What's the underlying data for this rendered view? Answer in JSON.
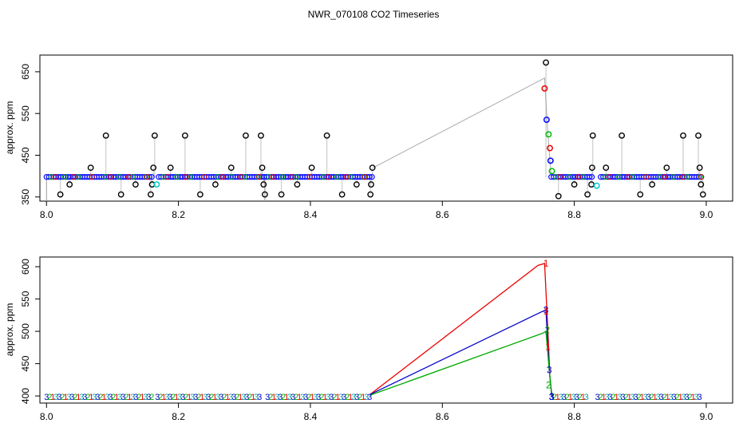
{
  "chart_data": [
    {
      "type": "scatter",
      "title": "NWR_070108  CO2 Timeseries",
      "xlabel": "",
      "ylabel": "approx. ppm",
      "xlim": [
        7.99,
        9.04
      ],
      "ylim": [
        340,
        690
      ],
      "xticks": [
        "8.0",
        "8.2",
        "8.4",
        "8.6",
        "8.8",
        "9.0"
      ],
      "yticks": [
        "350",
        "450",
        "550",
        "650"
      ],
      "baseline_segments": [
        [
          8.0,
          8.16
        ],
        [
          8.17,
          8.33
        ],
        [
          8.33,
          8.495
        ],
        [
          8.765,
          8.83
        ],
        [
          8.84,
          8.995
        ]
      ],
      "baseline_value": 398,
      "series": [
        {
          "name": "gray line",
          "color": "#aaaaaa",
          "points": [
            [
              8.495,
              420
            ],
            [
              8.755,
              635
            ],
            [
              8.76,
              500
            ],
            [
              8.765,
              400
            ]
          ]
        },
        {
          "name": "black spikes",
          "color": "#000000",
          "points": [
            [
              8.021,
              356
            ],
            [
              8.035,
              380
            ],
            [
              8.067,
              420
            ],
            [
              8.09,
              497
            ],
            [
              8.113,
              356
            ],
            [
              8.135,
              380
            ],
            [
              8.158,
              356
            ],
            [
              8.16,
              380
            ],
            [
              8.162,
              420
            ],
            [
              8.164,
              497
            ],
            [
              8.188,
              420
            ],
            [
              8.21,
              497
            ],
            [
              8.233,
              356
            ],
            [
              8.256,
              380
            ],
            [
              8.28,
              420
            ],
            [
              8.302,
              497
            ],
            [
              8.325,
              497
            ],
            [
              8.327,
              420
            ],
            [
              8.329,
              380
            ],
            [
              8.331,
              356
            ],
            [
              8.356,
              356
            ],
            [
              8.38,
              380
            ],
            [
              8.402,
              420
            ],
            [
              8.425,
              497
            ],
            [
              8.448,
              356
            ],
            [
              8.47,
              380
            ],
            [
              8.491,
              356
            ],
            [
              8.492,
              380
            ],
            [
              8.494,
              420
            ],
            [
              8.757,
              672
            ],
            [
              8.776,
              352
            ],
            [
              8.8,
              380
            ],
            [
              8.82,
              356
            ],
            [
              8.826,
              380
            ],
            [
              8.827,
              420
            ],
            [
              8.828,
              497
            ],
            [
              8.848,
              420
            ],
            [
              8.872,
              497
            ],
            [
              8.9,
              356
            ],
            [
              8.918,
              380
            ],
            [
              8.94,
              420
            ],
            [
              8.965,
              497
            ],
            [
              8.988,
              497
            ],
            [
              8.99,
              420
            ],
            [
              8.992,
              380
            ],
            [
              8.995,
              356
            ]
          ]
        },
        {
          "name": "red",
          "color": "#ee0000",
          "points": [
            [
              8.755,
              610
            ],
            [
              8.763,
              467
            ]
          ]
        },
        {
          "name": "blue",
          "color": "#0000ff",
          "points": [
            [
              8.758,
              535
            ],
            [
              8.764,
              437
            ]
          ]
        },
        {
          "name": "green",
          "color": "#00bb00",
          "points": [
            [
              8.761,
              500
            ],
            [
              8.766,
              412
            ]
          ]
        },
        {
          "name": "cyan",
          "color": "#00cccc",
          "points": [
            [
              8.167,
              380
            ],
            [
              8.834,
              377
            ]
          ]
        }
      ]
    },
    {
      "type": "line",
      "title": "",
      "xlabel": "",
      "ylabel": "approx. ppm",
      "xlim": [
        7.99,
        9.04
      ],
      "ylim": [
        389,
        615
      ],
      "xticks": [
        "8.0",
        "8.2",
        "8.4",
        "8.6",
        "8.8",
        "9.0"
      ],
      "yticks": [
        "400",
        "450",
        "500",
        "550",
        "600"
      ],
      "baseline_segments": [
        [
          8.0,
          8.16
        ],
        [
          8.168,
          8.325
        ],
        [
          8.335,
          8.49
        ],
        [
          8.765,
          8.82
        ],
        [
          8.835,
          8.99
        ]
      ],
      "baseline_value": 399,
      "baseline_label": "3",
      "series": [
        {
          "name": "1",
          "color": "#ee0000",
          "points": [
            [
              8.49,
              402
            ],
            [
              8.745,
              602
            ],
            [
              8.755,
              605
            ],
            [
              8.76,
              500
            ],
            [
              8.763,
              430
            ],
            [
              8.766,
              399
            ]
          ]
        },
        {
          "name": "3",
          "color": "#0000cc",
          "points": [
            [
              8.49,
              402
            ],
            [
              8.75,
              530
            ],
            [
              8.757,
              533
            ],
            [
              8.762,
              440
            ],
            [
              8.766,
              399
            ]
          ]
        },
        {
          "name": "2",
          "color": "#00aa00",
          "points": [
            [
              8.49,
              401
            ],
            [
              8.752,
              497
            ],
            [
              8.757,
              500
            ],
            [
              8.762,
              440
            ],
            [
              8.765,
              410
            ],
            [
              8.767,
              399
            ]
          ]
        }
      ],
      "point_labels": [
        {
          "label": "1",
          "x": 8.757,
          "y": 605,
          "color": "#ee0000"
        },
        {
          "label": "3",
          "x": 8.757,
          "y": 533,
          "color": "#0000cc"
        },
        {
          "label": "1",
          "x": 8.757,
          "y": 531,
          "color": "#ee0000"
        },
        {
          "label": "2",
          "x": 8.759,
          "y": 502,
          "color": "#00aa00"
        },
        {
          "label": "1",
          "x": 8.76,
          "y": 476,
          "color": "#ee0000"
        },
        {
          "label": "3",
          "x": 8.762,
          "y": 440,
          "color": "#0000cc"
        },
        {
          "label": "2",
          "x": 8.761,
          "y": 417,
          "color": "#00aa00"
        },
        {
          "label": "3",
          "x": 8.766,
          "y": 399,
          "color": "#0000cc"
        }
      ]
    }
  ]
}
